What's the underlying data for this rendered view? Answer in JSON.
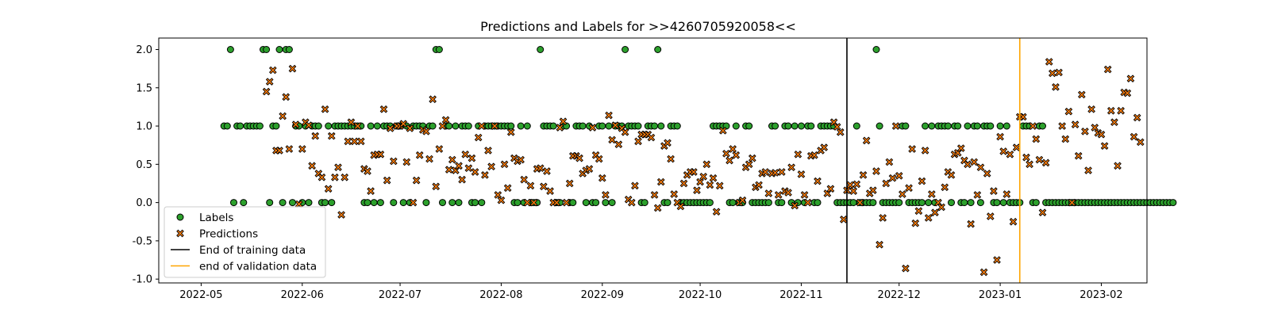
{
  "chart_data": {
    "type": "scatter",
    "title": "Predictions and Labels for >>4260705920058<<",
    "xlabel": "",
    "ylabel": "",
    "xlim": [
      "2022-04-18",
      "2023-02-15"
    ],
    "ylim": [
      -1.05,
      2.15
    ],
    "x_ticks": [
      "2022-05",
      "2022-06",
      "2022-07",
      "2022-08",
      "2022-09",
      "2022-10",
      "2022-11",
      "2022-12",
      "2023-01",
      "2023-02"
    ],
    "y_ticks": [
      -1.0,
      -0.5,
      0.0,
      0.5,
      1.0,
      1.5,
      2.0
    ],
    "grid": false,
    "legend_position": "lower-left",
    "colors": {
      "labels": "#2ca02c",
      "predictions": "#ff7f0e",
      "training_line": "#000000",
      "validation_line": "#ffa500"
    },
    "legend": [
      {
        "key": "labels",
        "label": "Labels",
        "kind": "circle"
      },
      {
        "key": "predictions",
        "label": "Predictions",
        "kind": "x"
      },
      {
        "key": "training",
        "label": "End of training data",
        "kind": "line"
      },
      {
        "key": "validation",
        "label": "end of validation data",
        "kind": "line"
      }
    ],
    "vlines": [
      {
        "key": "training",
        "x": "2022-11-15"
      },
      {
        "key": "validation",
        "x": "2023-01-07"
      }
    ],
    "series": [
      {
        "key": "labels",
        "name": "Labels",
        "start": "2022-05-08",
        "values": [
          1,
          1,
          2,
          0,
          1,
          1,
          0,
          1,
          1,
          1,
          1,
          1,
          2,
          2,
          0,
          1,
          1,
          2,
          0,
          2,
          2,
          0,
          1,
          1,
          0,
          1,
          0,
          1,
          1,
          1,
          0,
          0,
          1,
          0,
          1,
          1,
          1,
          1,
          1,
          1,
          1,
          1,
          1,
          0,
          0,
          1,
          0,
          1,
          0,
          1,
          1,
          1,
          0,
          1,
          1,
          0,
          1,
          0,
          1,
          1,
          1,
          1,
          0,
          1,
          1,
          2,
          2,
          0,
          1,
          1,
          0,
          1,
          0,
          1,
          1,
          1,
          0,
          0,
          1,
          0,
          1,
          1,
          1,
          1,
          1,
          1,
          1,
          1,
          1,
          0,
          0,
          1,
          0,
          1,
          0,
          0,
          0,
          2,
          1,
          1,
          1,
          1,
          0,
          0,
          1,
          1,
          0,
          0,
          1,
          1,
          1,
          0,
          1,
          0,
          0,
          1,
          1,
          0,
          1,
          0,
          1,
          1,
          1,
          2,
          1,
          1,
          1,
          1,
          0,
          0,
          1,
          1,
          1,
          2,
          1,
          0,
          0,
          1,
          1,
          1,
          0,
          0,
          0,
          0,
          0,
          0,
          0,
          0,
          0,
          0,
          1,
          1,
          1,
          1,
          1,
          0,
          0,
          1,
          0,
          0,
          1,
          1,
          0,
          0,
          0,
          0,
          0,
          0,
          1,
          1,
          0,
          0,
          1,
          1,
          0,
          1,
          0,
          1,
          0,
          1,
          1,
          0,
          0,
          1,
          1,
          1,
          1,
          1,
          0,
          0,
          0,
          0,
          0,
          0,
          1,
          0,
          0,
          0,
          0,
          0,
          2,
          1,
          0,
          0,
          0,
          0,
          0,
          0,
          1,
          1,
          0,
          0,
          0,
          0,
          0,
          1,
          0,
          1,
          0,
          1,
          1,
          1,
          1,
          0,
          1,
          1,
          0,
          0,
          1,
          0,
          1,
          1,
          0,
          1,
          1,
          1,
          0,
          0,
          1,
          0,
          1,
          0,
          0,
          0,
          0,
          1,
          1,
          1,
          0,
          0,
          1,
          1,
          0,
          0,
          0,
          0,
          0,
          0,
          0,
          0,
          0,
          0,
          0,
          0,
          0,
          0,
          0,
          0,
          0,
          0,
          0,
          0,
          0,
          0,
          0,
          0,
          0,
          0,
          0,
          0,
          0,
          0,
          0,
          0,
          0,
          0,
          0,
          0,
          0,
          0,
          0,
          0
        ]
      },
      {
        "key": "predictions",
        "name": "Predictions",
        "start": "2022-05-21",
        "values": [
          1.45,
          1.58,
          1.73,
          0.68,
          0.68,
          1.13,
          1.38,
          0.7,
          1.75,
          1.02,
          -0.02,
          0.7,
          1.05,
          1.01,
          0.48,
          0.87,
          0.38,
          0.33,
          1.22,
          0.18,
          0.87,
          0.33,
          0.46,
          -0.16,
          0.33,
          0.8,
          1.05,
          0.8,
          1.0,
          0.8,
          0.44,
          0.41,
          0.15,
          0.62,
          0.63,
          0.63,
          1.22,
          0.29,
          0.97,
          0.54,
          1.0,
          1.0,
          1.03,
          0.53,
          0.97,
          0.0,
          0.29,
          0.62,
          0.95,
          0.93,
          0.57,
          1.35,
          0.21,
          0.7,
          1.0,
          1.08,
          0.43,
          0.56,
          0.42,
          0.48,
          0.3,
          0.63,
          0.45,
          0.58,
          0.4,
          0.85,
          1.0,
          0.36,
          0.68,
          0.47,
          1.0,
          0.1,
          0.03,
          0.5,
          0.19,
          0.92,
          0.58,
          0.54,
          0.56,
          0.3,
          0.0,
          0.22,
          0.0,
          0.44,
          0.45,
          0.21,
          0.41,
          0.15,
          0.0,
          0.0,
          0.98,
          1.06,
          0.0,
          0.25,
          0.61,
          0.61,
          0.58,
          0.38,
          0.42,
          0.44,
          0.98,
          0.62,
          0.57,
          0.32,
          0.1,
          1.14,
          0.82,
          1.01,
          0.76,
          0.97,
          0.92,
          0.04,
          0.0,
          0.22,
          0.8,
          0.89,
          0.89,
          0.89,
          0.85,
          0.1,
          -0.07,
          0.27,
          0.74,
          0.78,
          0.57,
          0.11,
          0.0,
          -0.05,
          0.25,
          0.36,
          0.4,
          0.4,
          0.16,
          0.27,
          0.34,
          0.5,
          0.23,
          0.32,
          -0.12,
          0.22,
          0.94,
          0.64,
          0.55,
          0.7,
          0.62,
          0.0,
          0.03,
          0.46,
          0.5,
          0.58,
          0.2,
          0.23,
          0.38,
          0.4,
          0.12,
          0.38,
          0.39,
          0.1,
          0.4,
          0.15,
          0.13,
          0.46,
          -0.04,
          0.63,
          0.37,
          0.1,
          0.0,
          0.61,
          0.62,
          0.28,
          0.68,
          0.72,
          0.12,
          0.18,
          1.05,
          0.99,
          0.92,
          -0.22,
          0.16,
          0.23,
          0.15,
          0.24,
          0.0,
          0.36,
          0.81,
          0.12,
          0.16,
          0.41,
          -0.55,
          -0.2,
          0.25,
          0.53,
          0.32,
          1.0,
          0.35,
          0.11,
          -0.86,
          0.19,
          0.7,
          -0.27,
          -0.11,
          0.28,
          0.68,
          -0.2,
          0.11,
          -0.13,
          0.0,
          -0.06,
          0.2,
          0.4,
          0.36,
          0.63,
          0.65,
          0.71,
          0.55,
          0.5,
          -0.28,
          0.53,
          0.1,
          0.46,
          -0.91,
          0.38,
          -0.18,
          0.15,
          -0.75,
          0.86,
          0.67,
          0.11,
          0.63,
          -0.25,
          0.72,
          1.12,
          1.12,
          0.59,
          0.5,
          1.0,
          0.83,
          0.56,
          -0.13,
          0.52,
          1.84,
          1.69,
          1.51,
          1.7,
          1.0,
          0.83,
          1.19,
          0.0,
          1.02,
          0.61,
          1.41,
          0.93,
          0.42,
          1.22,
          0.98,
          0.91,
          0.89,
          0.74,
          1.74,
          1.2,
          1.05,
          0.48,
          1.2,
          1.44,
          1.43,
          1.62,
          0.86,
          1.11,
          0.79
        ]
      }
    ]
  }
}
